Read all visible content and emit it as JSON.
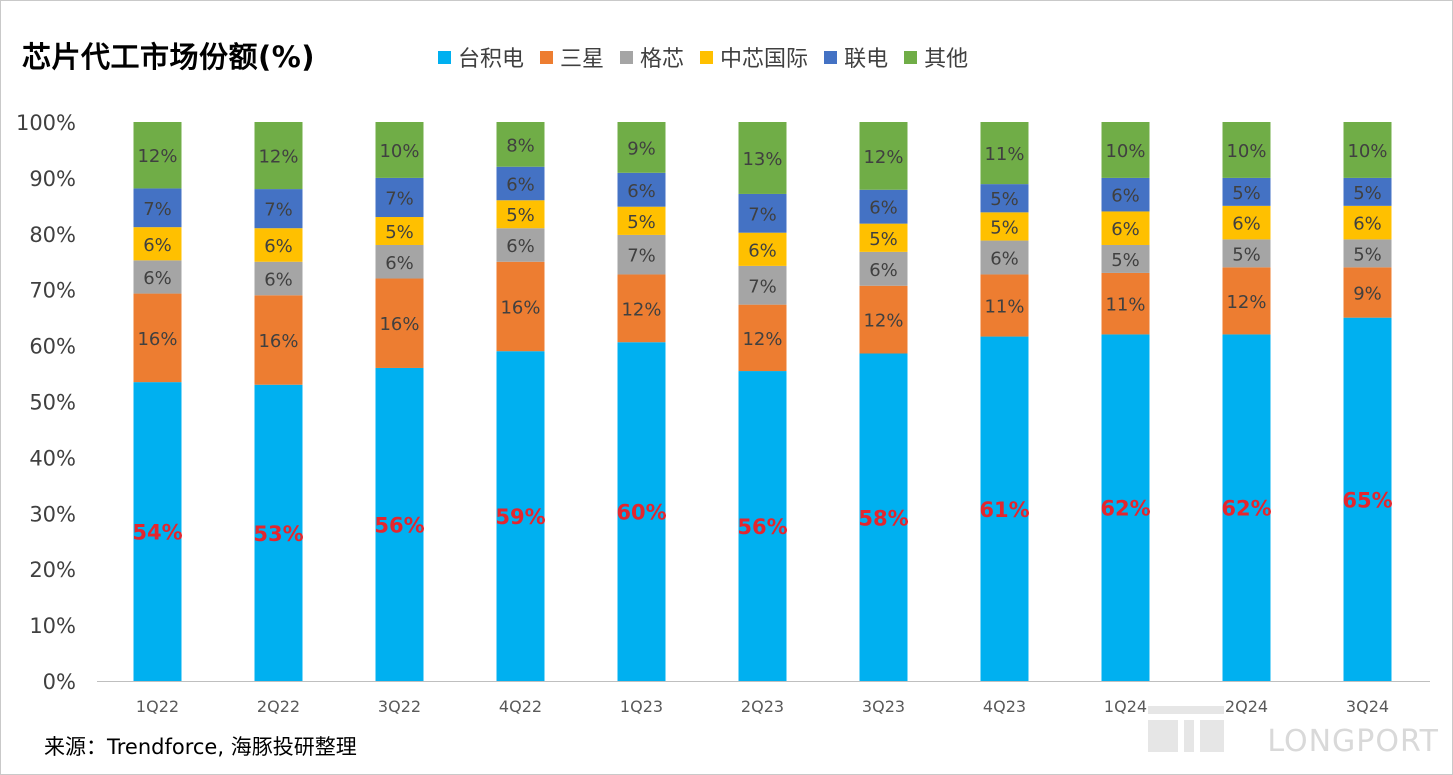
{
  "title": "芯片代工市场份额(%)",
  "source": "来源：Trendforce, 海豚投研整理",
  "watermark": "LONGPORT",
  "chart_data": {
    "type": "bar",
    "stacked": true,
    "title": "芯片代工市场份额(%)",
    "categories": [
      "1Q22",
      "2Q22",
      "3Q22",
      "4Q22",
      "1Q23",
      "2Q23",
      "3Q23",
      "4Q23",
      "1Q24",
      "2Q24",
      "3Q24"
    ],
    "ylim": [
      0,
      100
    ],
    "yticks": [
      "0%",
      "10%",
      "20%",
      "30%",
      "40%",
      "50%",
      "60%",
      "70%",
      "80%",
      "90%",
      "100%"
    ],
    "legend_position": "top",
    "grid": false,
    "series": [
      {
        "name": "台积电",
        "color": "#00B0F0",
        "label_color": "#E3262E",
        "label_bold": true,
        "values": [
          54,
          53,
          56,
          59,
          60,
          56,
          58,
          61,
          62,
          62,
          65
        ],
        "labels": [
          "54%",
          "53%",
          "56%",
          "59%",
          "60%",
          "56%",
          "58%",
          "61%",
          "62%",
          "62%",
          "65%"
        ]
      },
      {
        "name": "三星",
        "color": "#ED7D31",
        "label_color": "#404040",
        "label_bold": false,
        "values": [
          16,
          16,
          16,
          16,
          12,
          12,
          12,
          11,
          11,
          12,
          9
        ],
        "labels": [
          "16%",
          "16%",
          "16%",
          "16%",
          "12%",
          "12%",
          "12%",
          "11%",
          "11%",
          "12%",
          "9%"
        ]
      },
      {
        "name": "格芯",
        "color": "#A5A5A5",
        "label_color": "#404040",
        "label_bold": false,
        "values": [
          6,
          6,
          6,
          6,
          7,
          7,
          6,
          6,
          5,
          5,
          5
        ],
        "labels": [
          "6%",
          "6%",
          "6%",
          "6%",
          "7%",
          "7%",
          "6%",
          "6%",
          "5%",
          "5%",
          "5%"
        ]
      },
      {
        "name": "中芯国际",
        "color": "#FFC000",
        "label_color": "#404040",
        "label_bold": false,
        "values": [
          6,
          6,
          5,
          5,
          5,
          6,
          5,
          5,
          6,
          6,
          6
        ],
        "labels": [
          "6%",
          "6%",
          "5%",
          "5%",
          "5%",
          "6%",
          "5%",
          "5%",
          "6%",
          "6%",
          "6%"
        ]
      },
      {
        "name": "联电",
        "color": "#4472C4",
        "label_color": "#404040",
        "label_bold": false,
        "values": [
          7,
          7,
          7,
          6,
          6,
          7,
          6,
          5,
          6,
          5,
          5
        ],
        "labels": [
          "7%",
          "7%",
          "7%",
          "6%",
          "6%",
          "7%",
          "6%",
          "5%",
          "6%",
          "5%",
          "5%"
        ]
      },
      {
        "name": "其他",
        "color": "#70AD47",
        "label_color": "#404040",
        "label_bold": false,
        "values": [
          12,
          12,
          10,
          8,
          9,
          13,
          12,
          11,
          10,
          10,
          10
        ],
        "labels": [
          "12%",
          "12%",
          "10%",
          "8%",
          "9%",
          "13%",
          "12%",
          "11%",
          "10%",
          "10%",
          "10%"
        ]
      }
    ]
  }
}
